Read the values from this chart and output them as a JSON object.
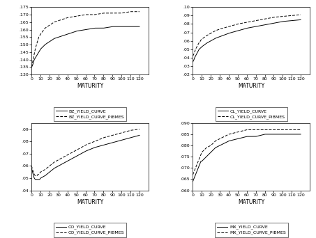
{
  "maturity": [
    0,
    1,
    2,
    3,
    4,
    5,
    6,
    7,
    8,
    9,
    10,
    15,
    20,
    25,
    30,
    40,
    50,
    60,
    70,
    80,
    90,
    100,
    110,
    120
  ],
  "BZ": {
    "solid": [
      0.135,
      0.136,
      0.138,
      0.14,
      0.141,
      0.142,
      0.143,
      0.144,
      0.145,
      0.146,
      0.147,
      0.15,
      0.152,
      0.154,
      0.155,
      0.157,
      0.159,
      0.16,
      0.161,
      0.161,
      0.162,
      0.162,
      0.162,
      0.162
    ],
    "dashed": [
      0.135,
      0.138,
      0.141,
      0.144,
      0.147,
      0.149,
      0.151,
      0.153,
      0.155,
      0.156,
      0.157,
      0.161,
      0.163,
      0.165,
      0.166,
      0.168,
      0.169,
      0.17,
      0.17,
      0.171,
      0.171,
      0.171,
      0.172,
      0.172
    ],
    "ylim": [
      0.13,
      0.175
    ],
    "yticks": [
      0.13,
      0.135,
      0.14,
      0.145,
      0.15,
      0.155,
      0.16,
      0.165,
      0.17,
      0.175
    ],
    "ytick_labels": [
      ".130",
      ".135",
      ".140",
      ".145",
      ".150",
      ".155",
      ".160",
      ".165",
      ".170",
      ".175"
    ],
    "label1": "BZ_YIELD_CURVE",
    "label2": "BZ_YIELD_CURVE_PIBMES"
  },
  "CL": {
    "solid": [
      0.035,
      0.037,
      0.04,
      0.042,
      0.044,
      0.046,
      0.048,
      0.05,
      0.051,
      0.052,
      0.053,
      0.057,
      0.06,
      0.063,
      0.065,
      0.069,
      0.072,
      0.075,
      0.077,
      0.079,
      0.081,
      0.083,
      0.084,
      0.085
    ],
    "dashed": [
      0.042,
      0.044,
      0.047,
      0.05,
      0.052,
      0.054,
      0.056,
      0.058,
      0.059,
      0.061,
      0.062,
      0.066,
      0.069,
      0.072,
      0.074,
      0.077,
      0.08,
      0.082,
      0.084,
      0.086,
      0.088,
      0.089,
      0.09,
      0.091
    ],
    "ylim": [
      0.02,
      0.1
    ],
    "yticks": [
      0.02,
      0.03,
      0.04,
      0.05,
      0.06,
      0.07,
      0.08,
      0.09,
      0.1
    ],
    "ytick_labels": [
      ".02",
      ".03",
      ".04",
      ".05",
      ".06",
      ".07",
      ".08",
      ".09",
      ".10"
    ],
    "label1": "CL_YIELD_CURVE",
    "label2": "CL_YIELD_CURVE_PIBMES"
  },
  "CO": {
    "solid": [
      0.058,
      0.055,
      0.052,
      0.05,
      0.049,
      0.049,
      0.049,
      0.049,
      0.049,
      0.049,
      0.05,
      0.052,
      0.055,
      0.058,
      0.06,
      0.064,
      0.068,
      0.072,
      0.075,
      0.077,
      0.079,
      0.081,
      0.083,
      0.085
    ],
    "dashed": [
      0.06,
      0.057,
      0.055,
      0.053,
      0.052,
      0.052,
      0.052,
      0.053,
      0.053,
      0.054,
      0.055,
      0.057,
      0.06,
      0.063,
      0.065,
      0.069,
      0.073,
      0.077,
      0.08,
      0.083,
      0.085,
      0.087,
      0.089,
      0.09
    ],
    "ylim": [
      0.04,
      0.095
    ],
    "yticks": [
      0.04,
      0.05,
      0.06,
      0.07,
      0.08,
      0.09
    ],
    "ytick_labels": [
      ".04",
      ".05",
      ".06",
      ".07",
      ".08",
      ".09"
    ],
    "label1": "CO_YIELD_CURVE",
    "label2": "CO_YIELD_CURVE_PIBMES"
  },
  "MX": {
    "solid": [
      0.064,
      0.065,
      0.066,
      0.067,
      0.068,
      0.069,
      0.07,
      0.071,
      0.072,
      0.073,
      0.073,
      0.075,
      0.077,
      0.079,
      0.08,
      0.082,
      0.083,
      0.084,
      0.084,
      0.085,
      0.085,
      0.085,
      0.085,
      0.085
    ],
    "dashed": [
      0.067,
      0.068,
      0.069,
      0.07,
      0.071,
      0.072,
      0.073,
      0.074,
      0.075,
      0.076,
      0.077,
      0.079,
      0.08,
      0.082,
      0.083,
      0.085,
      0.086,
      0.087,
      0.087,
      0.087,
      0.087,
      0.087,
      0.087,
      0.087
    ],
    "ylim": [
      0.06,
      0.09
    ],
    "yticks": [
      0.06,
      0.065,
      0.07,
      0.075,
      0.08,
      0.085,
      0.09
    ],
    "ytick_labels": [
      ".060",
      ".065",
      ".070",
      ".075",
      ".080",
      ".085",
      ".090"
    ],
    "label1": "MX_YIELD_CURVE",
    "label2": "MX_YIELD_CURVE_PIBMES"
  },
  "xlabel": "MATURITY",
  "xticks": [
    0,
    10,
    20,
    30,
    40,
    50,
    60,
    70,
    80,
    90,
    100,
    110,
    120
  ],
  "xtick_labels": [
    "0",
    "10",
    "20",
    "30",
    "40",
    "50",
    "60",
    "70",
    "80",
    "90",
    "100",
    "110",
    "120"
  ],
  "xlim": [
    0,
    130
  ],
  "line_color": "#000000",
  "fig_facecolor": "#ffffff",
  "ax_facecolor": "#ffffff",
  "legend_fontsize": 4.5,
  "tick_fontsize": 4.5,
  "label_fontsize": 5.5
}
